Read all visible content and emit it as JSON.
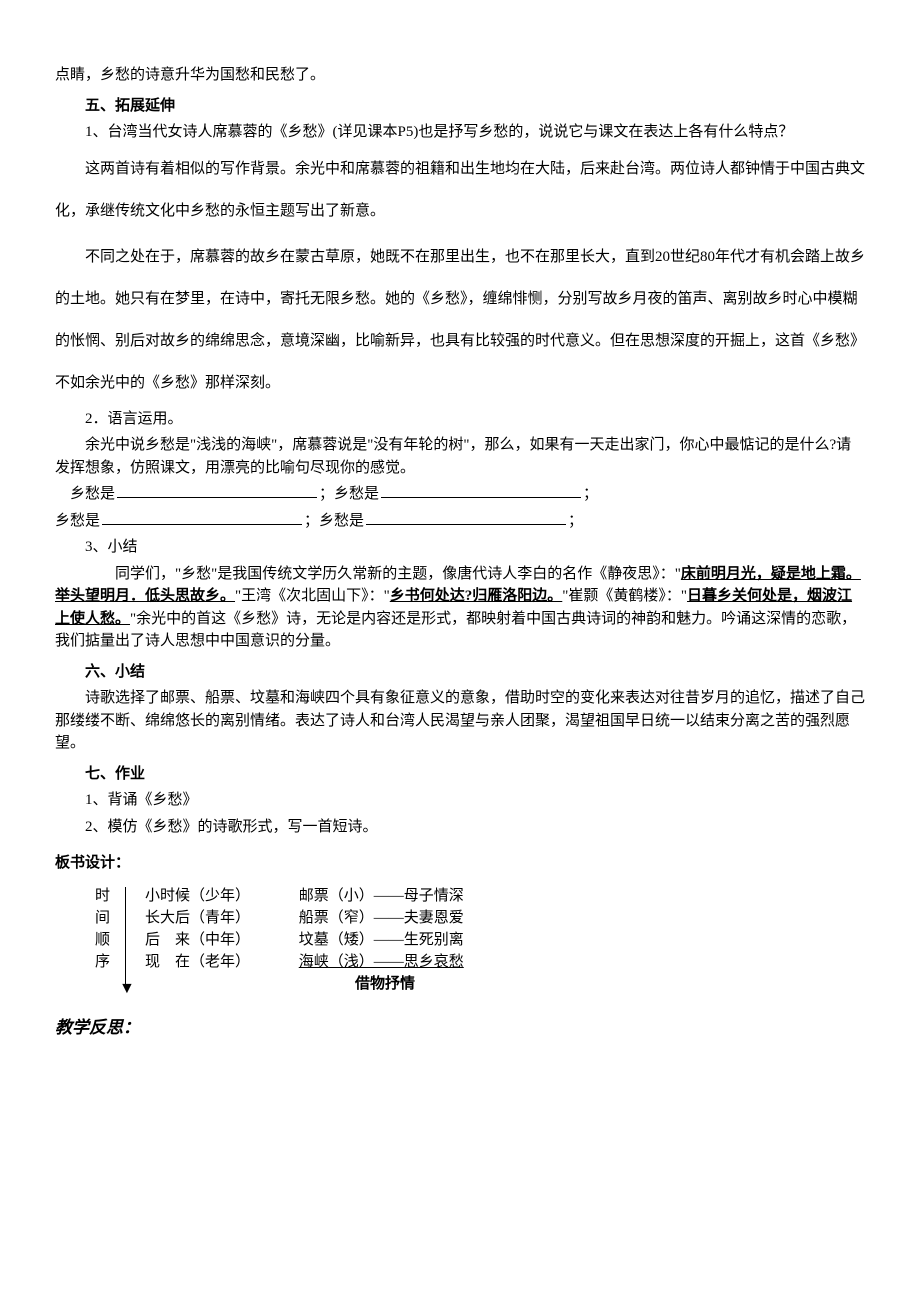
{
  "top_line": "点睛，乡愁的诗意升华为国愁和民愁了。",
  "section5_title": "五、拓展延伸",
  "s5_q1": "1、台湾当代女诗人席慕蓉的《乡愁》(详见课本P5)也是抒写乡愁的，说说它与课文在表达上各有什么特点？",
  "s5_p1": "这两首诗有着相似的写作背景。余光中和席慕蓉的祖籍和出生地均在大陆，后来赴台湾。两位诗人都钟情于中国古典文化，承继传统文化中乡愁的永恒主题写出了新意。",
  "s5_p2": "不同之处在于，席慕蓉的故乡在蒙古草原，她既不在那里出生，也不在那里长大，直到20世纪80年代才有机会踏上故乡的土地。她只有在梦里，在诗中，寄托无限乡愁。她的《乡愁》，缠绵悱恻，分别写故乡月夜的笛声、离别故乡时心中模糊的怅惘、别后对故乡的绵绵思念，意境深幽，比喻新异，也具有比较强的时代意义。但在思想深度的开掘上，这首《乡愁》不如余光中的《乡愁》那样深刻。",
  "s5_n2": "2．语言运用。",
  "s5_p3": "余光中说乡愁是\"浅浅的海峡\"，席慕蓉说是\"没有年轮的树\"，那么，如果有一天走出家门，你心中最惦记的是什么?请发挥想象，仿照课文，用漂亮的比喻句尽现你的感觉。",
  "fill_label": "乡愁是",
  "s5_n3": "3、小结",
  "s5_summary_part1": "同学们，\"乡愁\"是我国传统文学历久常新的主题，像唐代诗人李白的名作《静夜思》：\"",
  "s5_poem1": "床前明月光，疑是地上霜。举头望明月．低头思故乡。",
  "s5_mid1": "\"王湾《次北固山下》：\"",
  "s5_poem2": "乡书何处达?归雁洛阳边。",
  "s5_mid2": "\"崔颢《黄鹤楼》：\"",
  "s5_poem3": "日暮乡关何处是，烟波江上使人愁。",
  "s5_end": "\"余光中的首这《乡愁》诗，无论是内容还是形式，都映射着中国古典诗词的神韵和魅力。吟诵这深情的恋歌，我们掂量出了诗人思想中中国意识的分量。",
  "section6_title": "六、小结",
  "s6_p1": "诗歌选择了邮票、船票、坟墓和海峡四个具有象征意义的意象，借助时空的变化来表达对往昔岁月的追忆，描述了自己那缕缕不断、绵绵悠长的离别情绪。表达了诗人和台湾人民渴望与亲人团聚，渴望祖国早日统一以结束分离之苦的强烈愿望。",
  "section7_title": "七、作业",
  "s7_1": "1、背诵《乡愁》",
  "s7_2": "2、模仿《乡愁》的诗歌形式，写一首短诗。",
  "board_title": "板书设计：",
  "board": {
    "vertical": [
      "时",
      "间",
      "顺",
      "序"
    ],
    "rows": [
      {
        "col1": "小时候（少年）",
        "col2": "邮票（小）——母子情深"
      },
      {
        "col1": "长大后（青年）",
        "col2": "船票（窄）——夫妻恩爱"
      },
      {
        "col1": "后　来（中年）",
        "col2": "坟墓（矮）——生死别离"
      },
      {
        "col1": "现　在（老年）",
        "col2": "海峡（浅）——思乡哀愁"
      }
    ],
    "footer": "借物抒情"
  },
  "reflect": "教学反思："
}
